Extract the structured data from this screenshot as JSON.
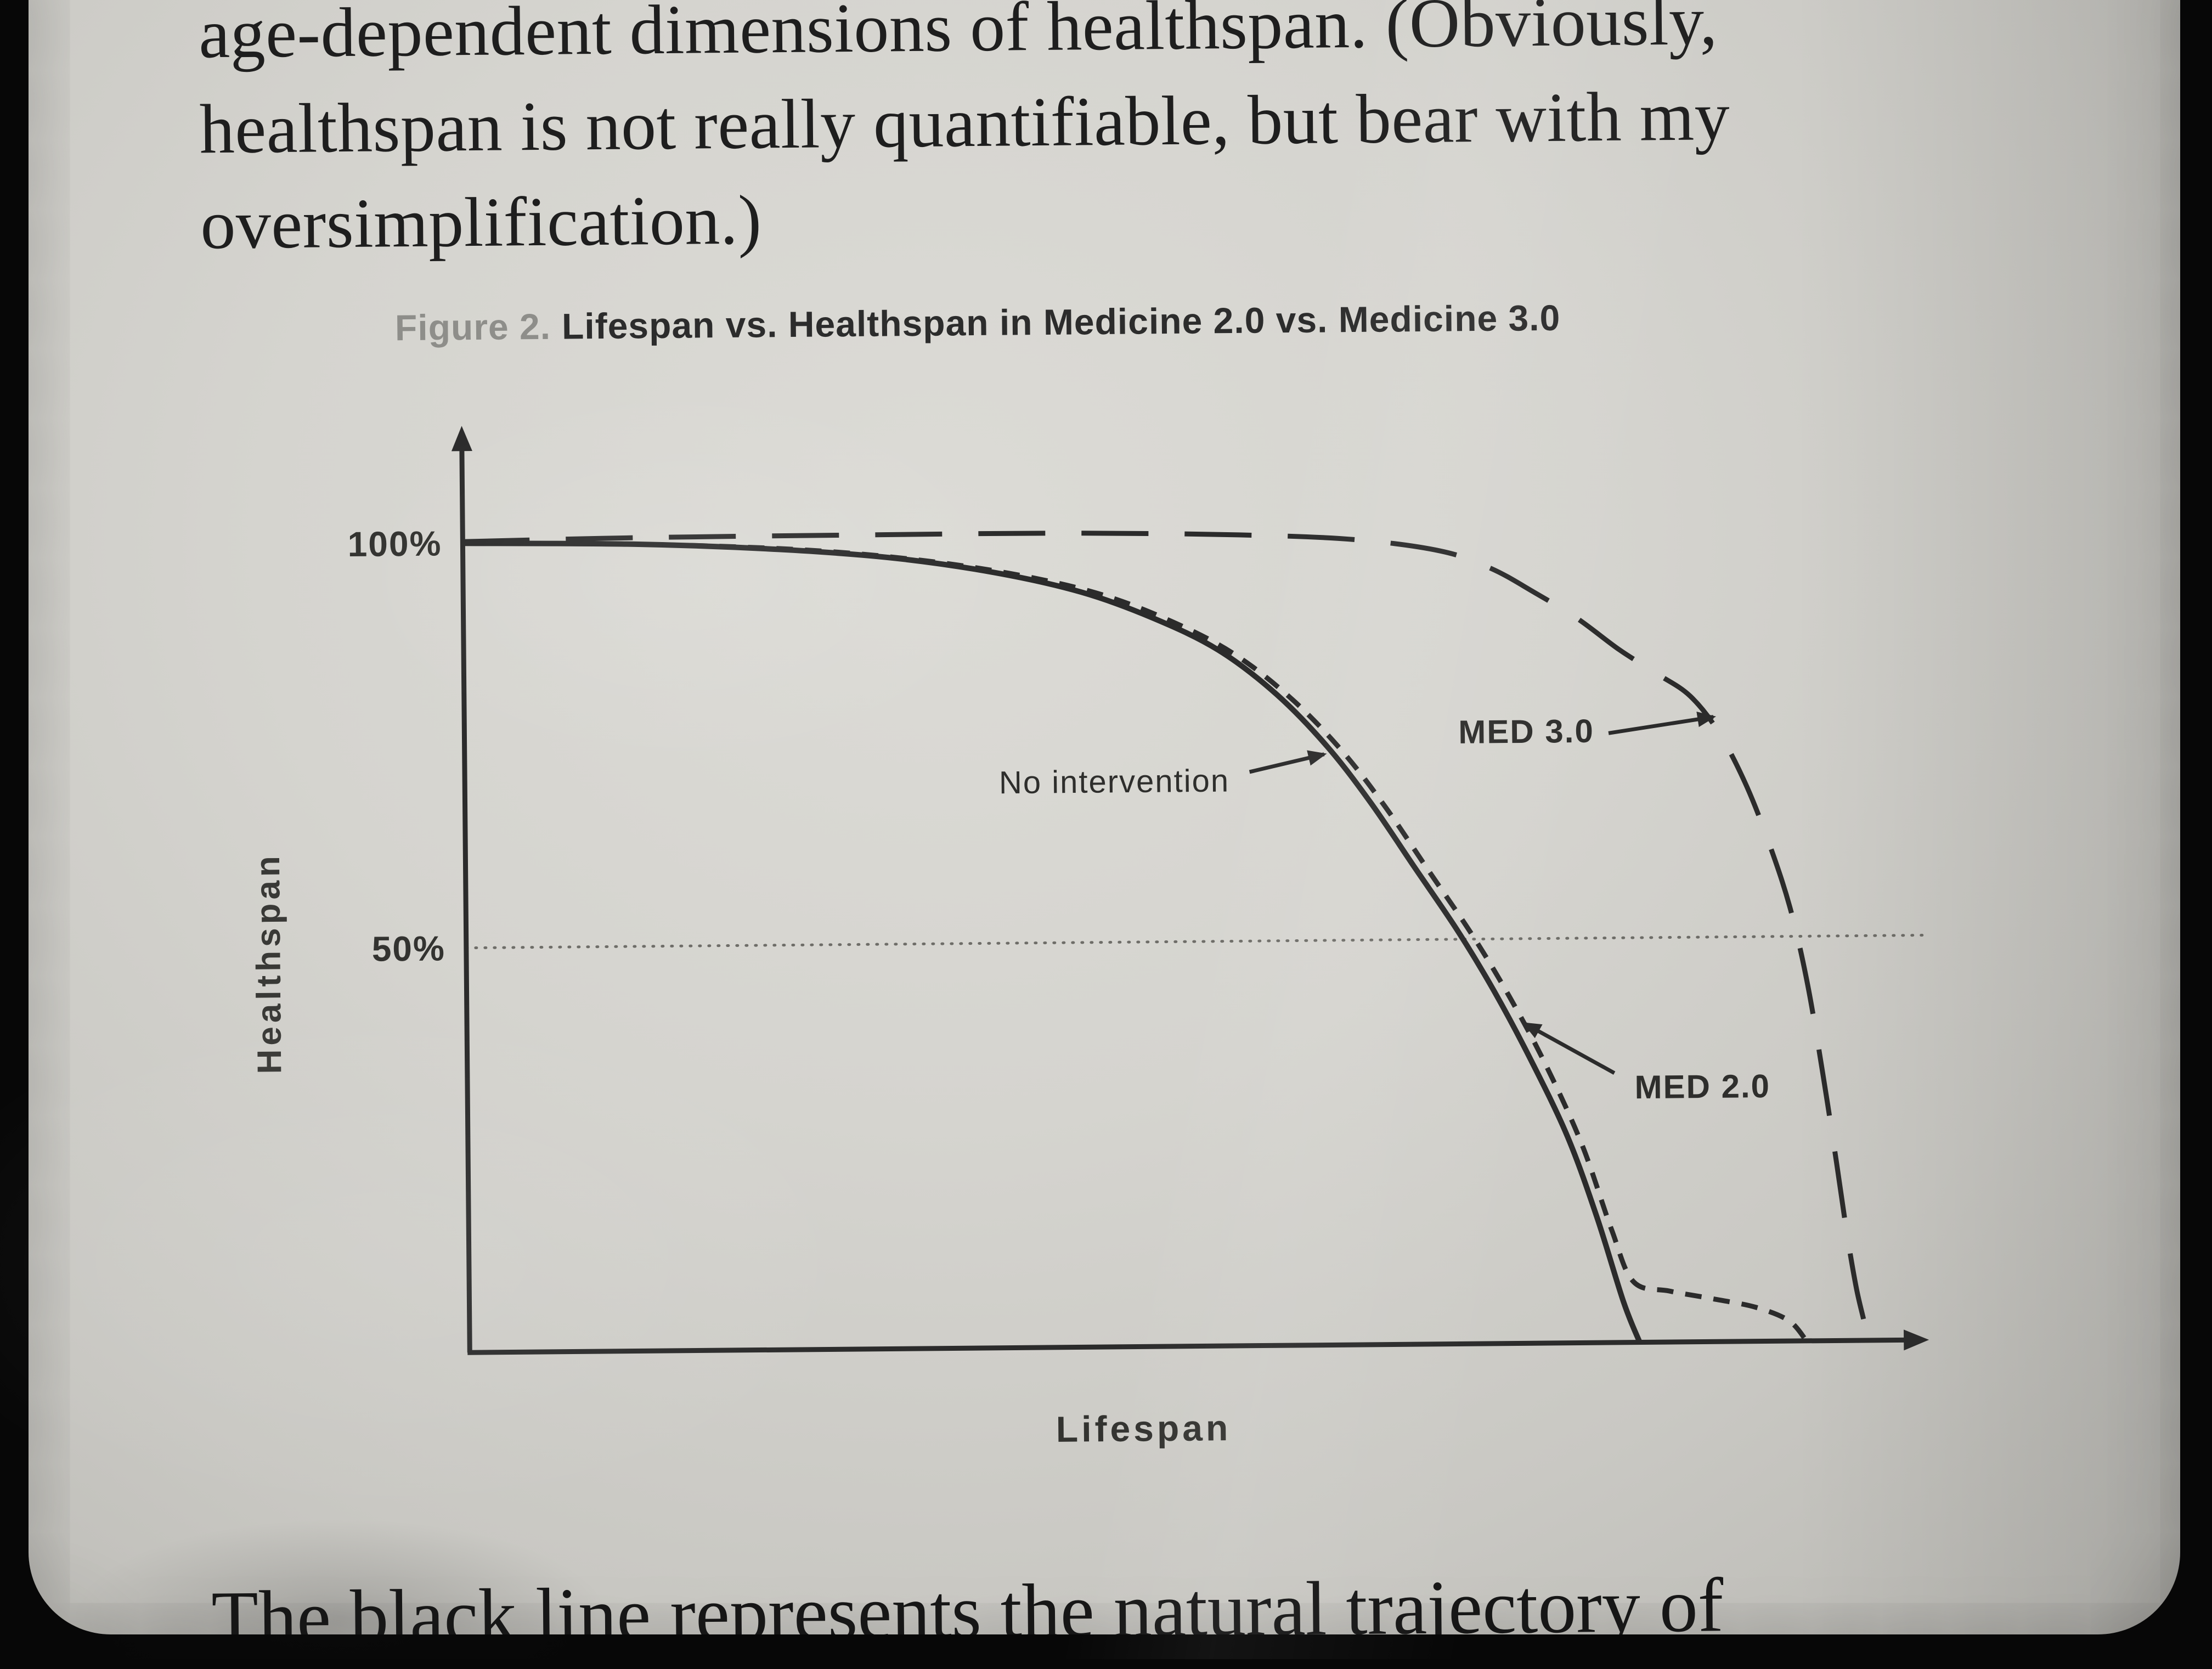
{
  "page": {
    "top_paragraph": {
      "line1": "age-dependent dimensions of healthspan. (Obviously,",
      "line2": "healthspan is not really quantifiable, but bear with my",
      "line3": "oversimplification.)"
    },
    "bottom_paragraph": "The black line represents the natural trajectory of"
  },
  "figure": {
    "caption_prefix": "Figure 2.",
    "caption_title": "Lifespan vs. Healthspan in Medicine 2.0 vs. Medicine 3.0"
  },
  "chart_data": {
    "type": "line",
    "title": "Figure 2. Lifespan vs. Healthspan in Medicine 2.0 vs. Medicine 3.0",
    "xlabel": "Lifespan",
    "ylabel": "Healthspan",
    "xlim": [
      0,
      100
    ],
    "ylim": [
      0,
      100
    ],
    "grid": false,
    "legend_position": "annotations-on-plot",
    "ytick_labels": [
      "100%",
      "50%"
    ],
    "ytick_values": [
      100,
      50
    ],
    "reference_line_y": 50,
    "axis_color": "#2b2b2b",
    "series": [
      {
        "name": "No intervention",
        "line_style": "solid",
        "color": "#2b2b2b",
        "points": [
          [
            0,
            100
          ],
          [
            12,
            99.7
          ],
          [
            22,
            98.9
          ],
          [
            30,
            97.7
          ],
          [
            37,
            95.8
          ],
          [
            43,
            93.3
          ],
          [
            48,
            90
          ],
          [
            52.5,
            86
          ],
          [
            56.5,
            80.5
          ],
          [
            60,
            74
          ],
          [
            63,
            67
          ],
          [
            66,
            59
          ],
          [
            69,
            51
          ],
          [
            71.5,
            43.5
          ],
          [
            74,
            35
          ],
          [
            76.5,
            25.5
          ],
          [
            78.5,
            15.5
          ],
          [
            80.3,
            5
          ],
          [
            81.4,
            0
          ]
        ]
      },
      {
        "name": "MED 2.0",
        "line_style": "dashed",
        "color": "#2b2b2b",
        "points": [
          [
            0,
            100
          ],
          [
            12,
            99.7
          ],
          [
            23,
            98.9
          ],
          [
            31,
            97.6
          ],
          [
            38,
            95.7
          ],
          [
            44,
            93.2
          ],
          [
            49,
            89.8
          ],
          [
            53.5,
            85.6
          ],
          [
            57.5,
            80
          ],
          [
            61,
            73.5
          ],
          [
            64,
            66.5
          ],
          [
            67,
            58.5
          ],
          [
            70,
            50.5
          ],
          [
            72.5,
            43
          ],
          [
            75,
            34.5
          ],
          [
            77.5,
            24.5
          ],
          [
            79.5,
            14
          ],
          [
            81,
            7.5
          ],
          [
            83.5,
            6.3
          ],
          [
            86.5,
            5.3
          ],
          [
            89.5,
            4.2
          ],
          [
            91.8,
            2.5
          ],
          [
            93,
            0
          ]
        ]
      },
      {
        "name": "MED 3.0",
        "line_style": "long-dashed",
        "color": "#2b2b2b",
        "points": [
          [
            0,
            100.2
          ],
          [
            12,
            100.5
          ],
          [
            28,
            100.6
          ],
          [
            42,
            100.6
          ],
          [
            54,
            100.2
          ],
          [
            62,
            99.5
          ],
          [
            68,
            98
          ],
          [
            71.5,
            95.8
          ],
          [
            74.5,
            92.8
          ],
          [
            77.5,
            89.5
          ],
          [
            80.4,
            85.6
          ],
          [
            83,
            82.6
          ],
          [
            85.3,
            79.8
          ],
          [
            87.3,
            75.2
          ],
          [
            89.2,
            68.5
          ],
          [
            90.9,
            60.5
          ],
          [
            92.2,
            53
          ],
          [
            93.3,
            44
          ],
          [
            94.3,
            33
          ],
          [
            95.2,
            22
          ],
          [
            95.9,
            13
          ],
          [
            96.5,
            6.5
          ],
          [
            97,
            2.5
          ],
          [
            97.3,
            0
          ]
        ]
      }
    ],
    "annotations": [
      {
        "text": "No intervention",
        "label_x": 53.2,
        "label_y": 69.8,
        "align": "right",
        "arrow": [
          [
            54.6,
            70.9
          ],
          [
            59.8,
            73
          ]
        ]
      },
      {
        "text": "MED 3.0",
        "label_x": 78.6,
        "label_y": 75.6,
        "align": "right",
        "arrow": [
          [
            79.6,
            75.3
          ],
          [
            86.9,
            77.2
          ]
        ]
      },
      {
        "text": "MED 2.0",
        "label_x": 81.2,
        "label_y": 31.5,
        "align": "left",
        "arrow": [
          [
            79.8,
            33.3
          ],
          [
            73.6,
            39.5
          ]
        ]
      }
    ]
  }
}
